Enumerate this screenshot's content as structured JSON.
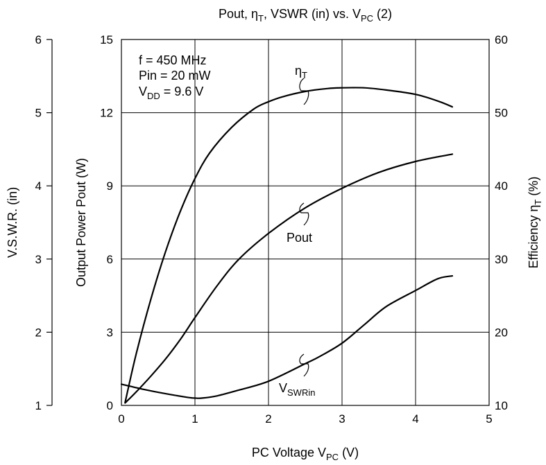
{
  "chart_data": {
    "type": "line",
    "title": "Pout, ηT, VSWR (in) vs. VPC (2)",
    "title_parts": {
      "pre": "Pout, η",
      "sub1": "T",
      "mid": ", VSWR (in) vs. V",
      "sub2": "PC",
      "post": " (2)"
    },
    "xlabel": "PC Voltage  VPC   (V)",
    "xlabel_parts": {
      "pre": "PC Voltage  V",
      "sub": "PC",
      "post": "   (V)"
    },
    "ylabel_pout": "Output Power Pout (W)",
    "ylabel_vswr": "V.S.W.R. (in)",
    "ylabel_eff": "Efficiency  ηT   (%)",
    "ylabel_eff_parts": {
      "pre": "Efficiency  η",
      "sub": "T",
      "post": "   (%)"
    },
    "x_ticks": [
      "0",
      "1",
      "2",
      "3",
      "4",
      "5"
    ],
    "y_pout_ticks": [
      "0",
      "3",
      "6",
      "9",
      "12",
      "15"
    ],
    "y_vswr_ticks": [
      "1",
      "2",
      "3",
      "4",
      "5",
      "6"
    ],
    "y_eff_ticks": [
      "10",
      "20",
      "30",
      "40",
      "50",
      "60"
    ],
    "xlim": [
      0,
      5
    ],
    "ylim_pout": [
      0,
      15
    ],
    "ylim_vswr": [
      1,
      6
    ],
    "ylim_eff": [
      10,
      60
    ],
    "grid": true,
    "conditions": {
      "freq": "f = 450 MHz",
      "pin": "Pin = 20 mW",
      "vdd_pre": "V",
      "vdd_sub": "DD",
      "vdd_post": " = 9.6 V"
    },
    "series": [
      {
        "name": "ηT",
        "label_pre": "η",
        "label_sub": "T",
        "axis": "efficiency",
        "x": [
          0.05,
          0.2,
          0.4,
          0.6,
          0.8,
          1.0,
          1.2,
          1.5,
          1.8,
          2.0,
          2.2,
          2.5,
          2.8,
          3.0,
          3.3,
          3.6,
          4.0,
          4.3,
          4.5
        ],
        "y": [
          10.4,
          17,
          24.5,
          31,
          36.5,
          41,
          44.5,
          48,
          50.5,
          51.5,
          52.2,
          52.9,
          53.3,
          53.4,
          53.4,
          53.1,
          52.5,
          51.6,
          50.8
        ]
      },
      {
        "name": "Pout",
        "axis": "pout",
        "x": [
          0.05,
          0.2,
          0.4,
          0.6,
          0.8,
          1.0,
          1.3,
          1.6,
          2.0,
          2.5,
          3.0,
          3.5,
          4.0,
          4.5
        ],
        "y": [
          0.1,
          0.55,
          1.2,
          1.9,
          2.7,
          3.6,
          4.9,
          6.0,
          7.05,
          8.1,
          8.9,
          9.55,
          10.0,
          10.3
        ]
      },
      {
        "name": "VSWRin",
        "label_pre": "V",
        "label_sub": "SWRin",
        "axis": "vswr",
        "x": [
          0.0,
          0.3,
          0.6,
          0.9,
          1.0,
          1.1,
          1.3,
          1.6,
          2.0,
          2.5,
          2.7,
          3.0,
          3.3,
          3.6,
          4.0,
          4.3,
          4.5
        ],
        "y": [
          1.29,
          1.22,
          1.16,
          1.11,
          1.1,
          1.1,
          1.13,
          1.21,
          1.33,
          1.57,
          1.67,
          1.85,
          2.1,
          2.35,
          2.57,
          2.73,
          2.77
        ]
      }
    ]
  }
}
